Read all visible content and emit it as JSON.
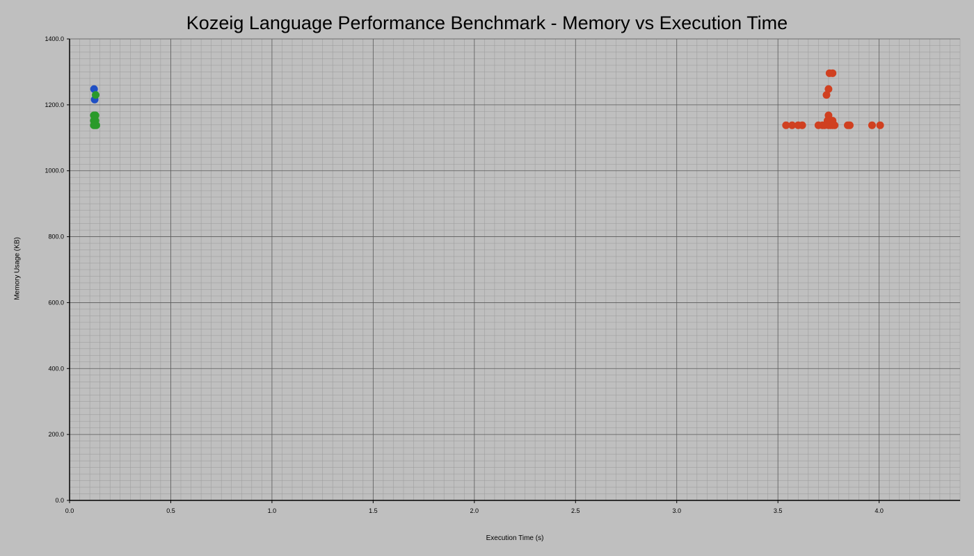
{
  "chart_data": {
    "type": "scatter",
    "title": "Kozeig Language Performance Benchmark - Memory vs Execution Time",
    "xlabel": "Execution Time (s)",
    "ylabel": "Memory Usage (KB)",
    "xlim": [
      0,
      4.4
    ],
    "ylim": [
      0,
      1400
    ],
    "x_ticks": [
      0.0,
      0.5,
      1.0,
      1.5,
      2.0,
      2.5,
      3.0,
      3.5,
      4.0
    ],
    "x_tick_labels": [
      "0.0",
      "0.5",
      "1.0",
      "1.5",
      "2.0",
      "2.5",
      "3.0",
      "3.5",
      "4.0"
    ],
    "y_ticks": [
      0,
      200,
      400,
      600,
      800,
      1000,
      1200,
      1400
    ],
    "y_tick_labels": [
      "0.0",
      "200.0",
      "400.0",
      "600.0",
      "800.0",
      "1000.0",
      "1200.0",
      "1400.0"
    ],
    "grid": true,
    "minor_grid": true,
    "series": [
      {
        "color": "#1f4fc4",
        "points": [
          {
            "x": 0.121,
            "y": 1248
          },
          {
            "x": 0.124,
            "y": 1216
          }
        ]
      },
      {
        "color": "#2a9a2a",
        "points": [
          {
            "x": 0.129,
            "y": 1230
          },
          {
            "x": 0.12,
            "y": 1168
          },
          {
            "x": 0.128,
            "y": 1168
          },
          {
            "x": 0.12,
            "y": 1152
          },
          {
            "x": 0.128,
            "y": 1152
          },
          {
            "x": 0.12,
            "y": 1138
          },
          {
            "x": 0.126,
            "y": 1138
          },
          {
            "x": 0.132,
            "y": 1138
          }
        ]
      },
      {
        "color": "#d04020",
        "points": [
          {
            "x": 3.54,
            "y": 1138
          },
          {
            "x": 3.57,
            "y": 1138
          },
          {
            "x": 3.6,
            "y": 1138
          },
          {
            "x": 3.62,
            "y": 1138
          },
          {
            "x": 3.7,
            "y": 1138
          },
          {
            "x": 3.72,
            "y": 1138
          },
          {
            "x": 3.73,
            "y": 1138
          },
          {
            "x": 3.75,
            "y": 1138
          },
          {
            "x": 3.76,
            "y": 1138
          },
          {
            "x": 3.77,
            "y": 1138
          },
          {
            "x": 3.78,
            "y": 1138
          },
          {
            "x": 3.745,
            "y": 1152
          },
          {
            "x": 3.77,
            "y": 1152
          },
          {
            "x": 3.75,
            "y": 1168
          },
          {
            "x": 3.74,
            "y": 1230
          },
          {
            "x": 3.75,
            "y": 1248
          },
          {
            "x": 3.755,
            "y": 1296
          },
          {
            "x": 3.77,
            "y": 1296
          },
          {
            "x": 3.845,
            "y": 1138
          },
          {
            "x": 3.855,
            "y": 1138
          },
          {
            "x": 3.965,
            "y": 1138
          },
          {
            "x": 4.005,
            "y": 1138
          }
        ]
      }
    ]
  }
}
